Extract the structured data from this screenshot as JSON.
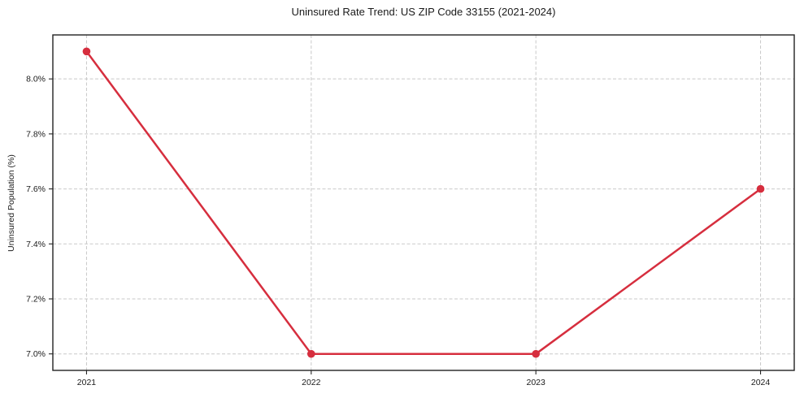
{
  "chart_data": {
    "type": "line",
    "title": "Uninsured Rate Trend: US ZIP Code 33155 (2021-2024)",
    "xlabel": "",
    "ylabel": "Uninsured Population (%)",
    "x": [
      2021,
      2022,
      2023,
      2024
    ],
    "x_tick_labels": [
      "2021",
      "2022",
      "2023",
      "2024"
    ],
    "series": [
      {
        "name": "Uninsured Population (%)",
        "values": [
          8.1,
          7.0,
          7.0,
          7.6
        ]
      }
    ],
    "y_ticks": [
      7.0,
      7.2,
      7.4,
      7.6,
      7.8,
      8.0
    ],
    "y_tick_labels": [
      "7.0%",
      "7.2%",
      "7.4%",
      "7.6%",
      "7.8%",
      "8.0%"
    ],
    "xlim": [
      2020.85,
      2024.15
    ],
    "ylim": [
      6.94,
      8.16
    ],
    "grid": true,
    "legend_position": "none",
    "line_color": "#d62e3e",
    "marker": "circle",
    "background_color": "#ffffff"
  }
}
